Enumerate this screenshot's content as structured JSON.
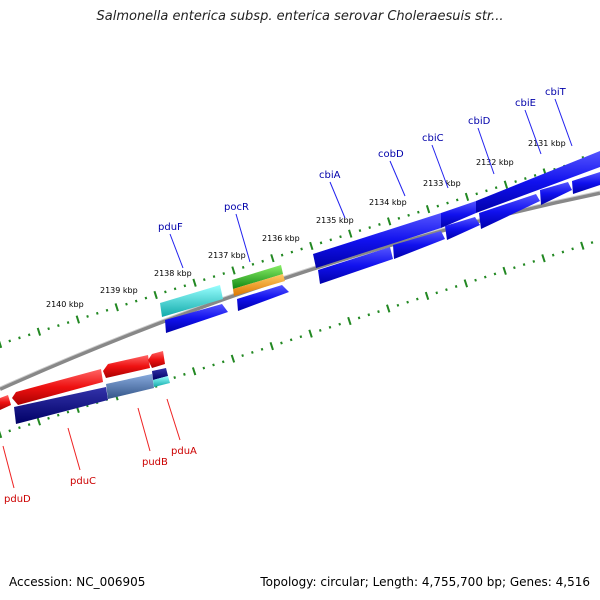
{
  "title": "Salmonella enterica subsp. enterica serovar Choleraesuis str...",
  "footer": {
    "accession": "Accession: NC_006905",
    "summary": "Topology: circular; Length: 4,755,700 bp; Genes: 4,516"
  },
  "ticks": [
    {
      "label": "2140 kbp",
      "pos": 2140
    },
    {
      "label": "2139 kbp",
      "pos": 2139
    },
    {
      "label": "2138 kbp",
      "pos": 2138
    },
    {
      "label": "2137 kbp",
      "pos": 2137
    },
    {
      "label": "2136 kbp",
      "pos": 2136
    },
    {
      "label": "2135 kbp",
      "pos": 2135
    },
    {
      "label": "2134 kbp",
      "pos": 2134
    },
    {
      "label": "2133 kbp",
      "pos": 2133
    },
    {
      "label": "2132 kbp",
      "pos": 2132
    },
    {
      "label": "2131 kbp",
      "pos": 2131
    }
  ],
  "genes_forward": [
    {
      "name": "pduF",
      "color": "#0000aa"
    },
    {
      "name": "pocR",
      "color": "#0000aa"
    },
    {
      "name": "cbiA",
      "color": "#0000aa"
    },
    {
      "name": "cobD",
      "color": "#0000aa"
    },
    {
      "name": "cbiC",
      "color": "#0000aa"
    },
    {
      "name": "cbiD",
      "color": "#0000aa"
    },
    {
      "name": "cbiE",
      "color": "#0000aa"
    },
    {
      "name": "cbiT",
      "color": "#0000aa"
    }
  ],
  "genes_reverse": [
    {
      "name": "pduD",
      "color": "#cc0000"
    },
    {
      "name": "pduC",
      "color": "#cc0000"
    },
    {
      "name": "pudB",
      "color": "#cc0000"
    },
    {
      "name": "pduA",
      "color": "#cc0000"
    }
  ],
  "colors": {
    "cds_forward": "#1a1aee",
    "cds_reverse": "#ee1111",
    "cog_dark": "#0a0a80",
    "cog_cyan": "#22cccc",
    "cog_green": "#33bb33",
    "cog_orange": "#ff9922",
    "cog_steel": "#4477aa",
    "backbone": "#888888",
    "tick": "#228822"
  }
}
